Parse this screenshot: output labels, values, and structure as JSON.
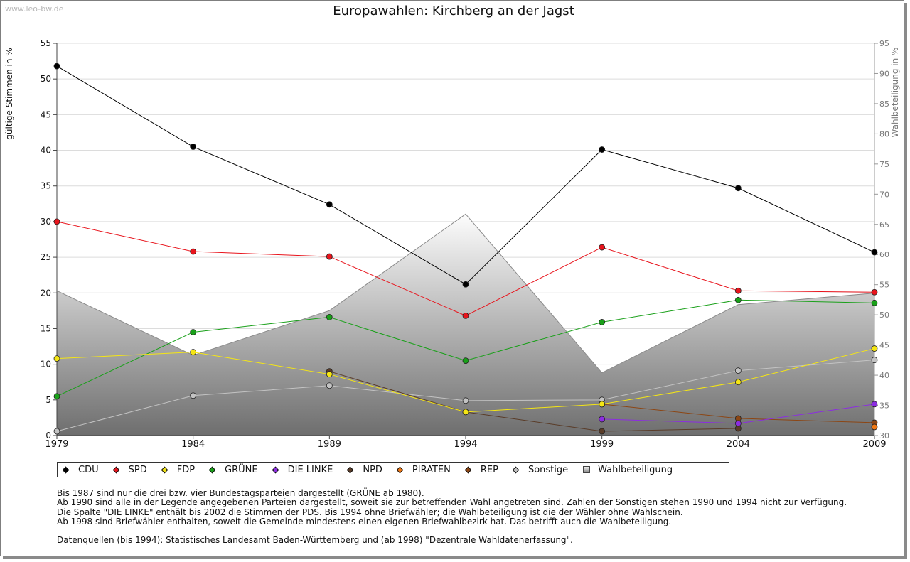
{
  "watermark": "www.leo-bw.de",
  "chart_data": {
    "type": "line",
    "title": "Europawahlen: Kirchberg an der Jagst",
    "ylabel": "gültige Stimmen in %",
    "y2label": "Wahlbeteiligung in %",
    "ylim": [
      0,
      55
    ],
    "y2lim": [
      30,
      95
    ],
    "yticks": [
      0,
      5,
      10,
      15,
      20,
      25,
      30,
      35,
      40,
      45,
      50,
      55
    ],
    "y2ticks": [
      30,
      35,
      40,
      45,
      50,
      55,
      60,
      65,
      70,
      75,
      80,
      85,
      90,
      95
    ],
    "x": [
      "1979",
      "1984",
      "1989",
      "1994",
      "1999",
      "2004",
      "2009"
    ],
    "grid": true,
    "legend_position": "bottom",
    "series": [
      {
        "name": "CDU",
        "color": "#000000",
        "values": [
          51.8,
          40.5,
          32.4,
          21.2,
          40.1,
          34.7,
          25.7
        ]
      },
      {
        "name": "SPD",
        "color": "#e8141c",
        "values": [
          30.0,
          25.8,
          25.1,
          16.8,
          26.4,
          20.3,
          20.1
        ]
      },
      {
        "name": "FDP",
        "color": "#f5e614",
        "values": [
          10.8,
          11.7,
          8.6,
          3.3,
          4.4,
          7.5,
          12.2
        ]
      },
      {
        "name": "GRÜNE",
        "color": "#19a019",
        "values": [
          5.5,
          14.5,
          16.6,
          10.5,
          15.9,
          19.0,
          18.6
        ]
      },
      {
        "name": "DIE LINKE",
        "color": "#8c2de1",
        "values": [
          null,
          null,
          null,
          null,
          2.3,
          1.7,
          4.4
        ]
      },
      {
        "name": "NPD",
        "color": "#5a3c28",
        "values": [
          null,
          null,
          9.0,
          3.3,
          0.6,
          1.0,
          null
        ]
      },
      {
        "name": "PIRATEN",
        "color": "#f07814",
        "values": [
          null,
          null,
          null,
          null,
          null,
          null,
          1.2
        ]
      },
      {
        "name": "REP",
        "color": "#8c4614",
        "values": [
          null,
          null,
          null,
          null,
          4.4,
          2.4,
          1.8
        ]
      },
      {
        "name": "Sonstige",
        "color": "#c3c3c3",
        "values": [
          0.6,
          5.6,
          7.0,
          4.9,
          5.0,
          9.1,
          10.6
        ]
      }
    ],
    "turnout": {
      "name": "Wahlbeteiligung",
      "color": "#aaaaaa",
      "values": [
        54.0,
        43.3,
        50.7,
        66.7,
        40.4,
        51.7,
        53.6
      ]
    }
  },
  "notes": [
    "Bis 1987 sind nur die drei bzw. vier Bundestagsparteien dargestellt (GRÜNE ab 1980).",
    "Ab 1990 sind alle in der Legende angegebenen Parteien dargestellt, soweit sie zur betreffenden Wahl angetreten sind. Zahlen der Sonstigen stehen 1990 und 1994 nicht zur Verfügung.",
    "Die Spalte \"DIE LINKE\" enthält bis 2002 die Stimmen der PDS. Bis 1994 ohne Briefwähler; die Wahlbeteiligung ist die der Wähler ohne Wahlschein.",
    "Ab 1998 sind Briefwähler enthalten, soweit die Gemeinde mindestens einen eigenen Briefwahlbezirk hat. Das betrifft auch die Wahlbeteiligung."
  ],
  "source": "Datenquellen (bis 1994): Statistisches Landesamt Baden-Württemberg und (ab 1998) \"Dezentrale Wahldatenerfassung\"."
}
